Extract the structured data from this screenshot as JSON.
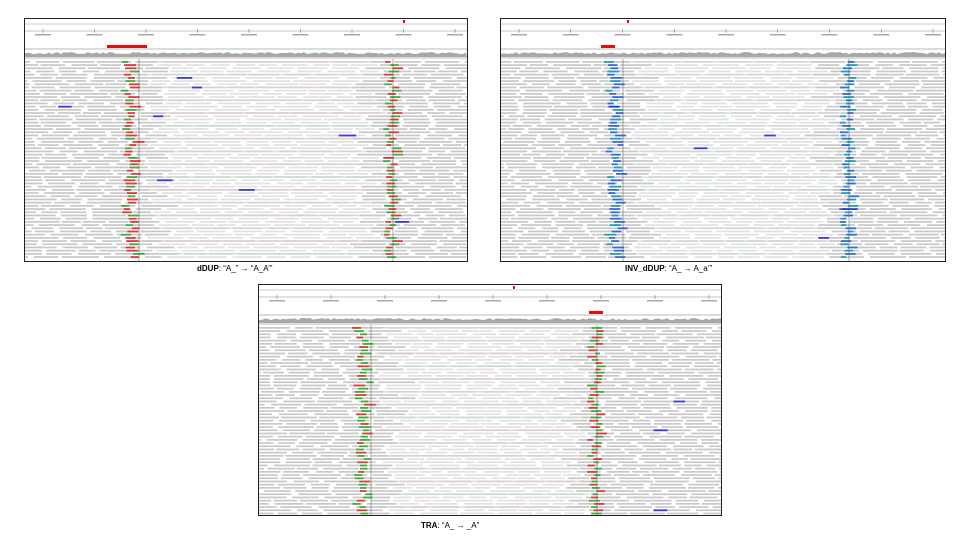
{
  "panels": [
    {
      "id": "ddup",
      "caption_bold": "dDUP",
      "caption_rest": ": “A_” → “A_A’”",
      "palette": {
        "read": "#c8c8c8",
        "left_clip": "#3cb040",
        "right_clip": "#e03a3a",
        "band_pink": "#f3d0d0",
        "band_green": "#d0ead0",
        "blue": "#3a3ad8",
        "locus_marker": "#e01010"
      }
    },
    {
      "id": "inv_ddup",
      "caption_bold": "INV_dDUP",
      "caption_rest": ": “A_ → A_a’”",
      "palette": {
        "read": "#c8c8c8",
        "left_clip": "#20a0b0",
        "right_clip": "#3a6ad8",
        "band_pink": "#d8e2f0",
        "band_green": "#d0e8ec",
        "blue": "#3a3ad8",
        "locus_marker": "#e01010"
      }
    },
    {
      "id": "tra",
      "caption_bold": "TRA",
      "caption_rest": ": “A_ → _A”",
      "palette": {
        "read": "#c8c8c8",
        "left_clip": "#e03a3a",
        "right_clip": "#3cb040",
        "band_pink": "#f3d0d0",
        "band_green": "#d0ead0",
        "blue": "#3a3ad8",
        "locus_marker": "#e01010"
      }
    }
  ]
}
